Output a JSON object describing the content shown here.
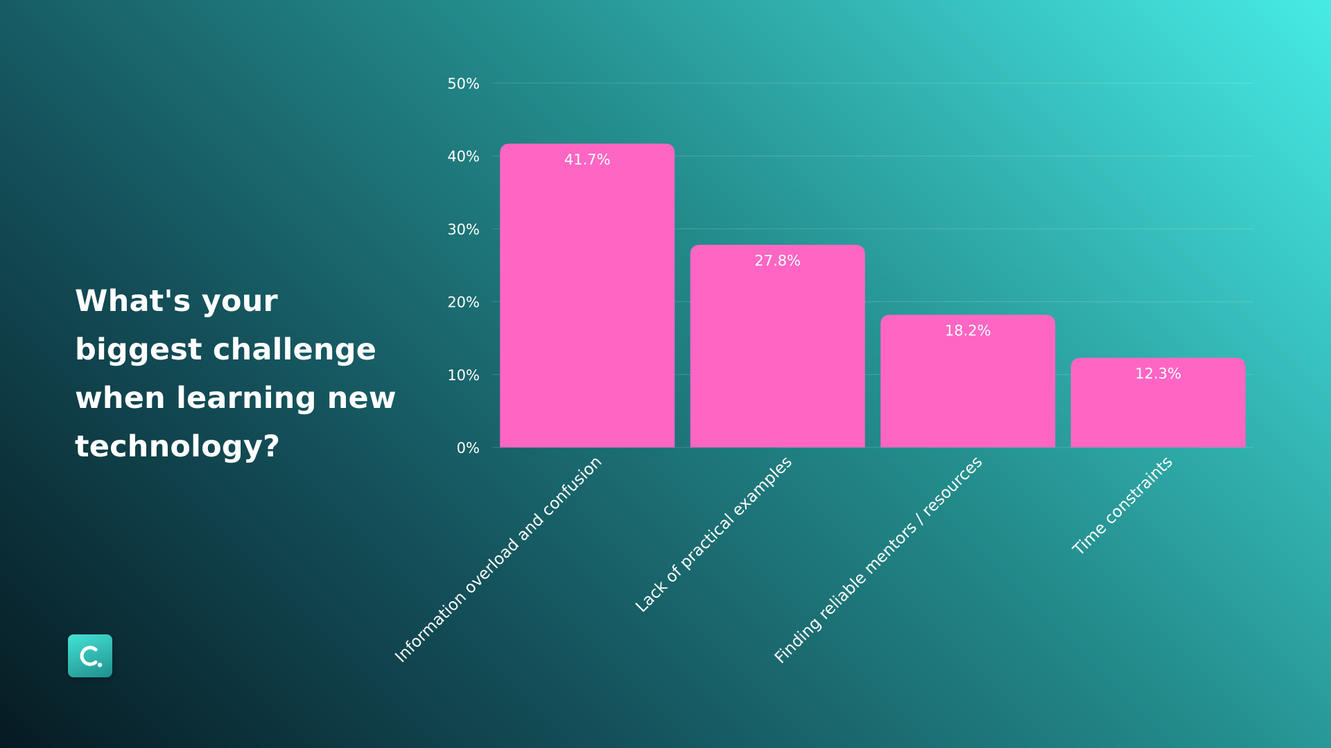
{
  "question": "What's your biggest challenge when learning new technology?",
  "logo": {
    "icon": "brand-c-logo-icon"
  },
  "colors": {
    "bar": "#ff66c4",
    "grid": "rgba(255,255,255,0.18)",
    "text": "#ffffff"
  },
  "chart_data": {
    "type": "bar",
    "categories": [
      "Information overload and confusion",
      "Lack of practical examples",
      "Finding reliable mentors / resources",
      "Time constraints"
    ],
    "values": [
      41.7,
      27.8,
      18.2,
      12.3
    ],
    "value_labels": [
      "41.7%",
      "27.8%",
      "18.2%",
      "12.3%"
    ],
    "title": "",
    "xlabel": "",
    "ylabel": "",
    "ylim": [
      0,
      50
    ],
    "yticks": [
      0,
      10,
      20,
      30,
      40,
      50
    ],
    "ytick_labels": [
      "0%",
      "10%",
      "20%",
      "30%",
      "40%",
      "50%"
    ],
    "grid": true,
    "legend": "none"
  }
}
